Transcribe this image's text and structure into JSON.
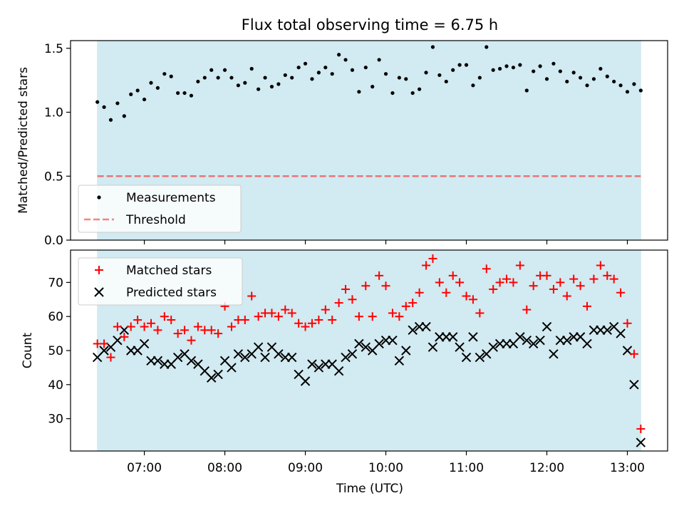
{
  "title": "Flux total observing time = 6.75 h",
  "colors": {
    "band": "#add8e6",
    "measurement": "#000000",
    "threshold": "#ff0000",
    "matched": "#ff0000",
    "predicted": "#000000"
  },
  "chart_data": [
    {
      "type": "scatter",
      "ylabel": "Matched/Predicted stars",
      "ylim": [
        0,
        1.56
      ],
      "yticks": [
        "0.0",
        "0.5",
        "1.0",
        "1.5"
      ],
      "legend_placement": "lower-left",
      "threshold": 0.5,
      "x": [
        "06:25",
        "06:30",
        "06:35",
        "06:40",
        "06:45",
        "06:50",
        "06:55",
        "07:00",
        "07:05",
        "07:10",
        "07:15",
        "07:20",
        "07:25",
        "07:30",
        "07:35",
        "07:40",
        "07:45",
        "07:50",
        "07:55",
        "08:00",
        "08:05",
        "08:10",
        "08:15",
        "08:20",
        "08:25",
        "08:30",
        "08:35",
        "08:40",
        "08:45",
        "08:50",
        "08:55",
        "09:00",
        "09:05",
        "09:10",
        "09:15",
        "09:20",
        "09:25",
        "09:30",
        "09:35",
        "09:40",
        "09:45",
        "09:50",
        "09:55",
        "10:00",
        "10:05",
        "10:10",
        "10:15",
        "10:20",
        "10:25",
        "10:30",
        "10:35",
        "10:40",
        "10:45",
        "10:50",
        "10:55",
        "11:00",
        "11:05",
        "11:10",
        "11:15",
        "11:20",
        "11:25",
        "11:30",
        "11:35",
        "11:40",
        "11:45",
        "11:50",
        "11:55",
        "12:00",
        "12:05",
        "12:10",
        "12:15",
        "12:20",
        "12:25",
        "12:30",
        "12:35",
        "12:40",
        "12:45",
        "12:50",
        "12:55",
        "13:00",
        "13:05",
        "13:10"
      ],
      "series": [
        {
          "name": "Measurements",
          "marker": "dot",
          "values": [
            1.08,
            1.04,
            0.94,
            1.07,
            0.97,
            1.14,
            1.17,
            1.1,
            1.23,
            1.19,
            1.3,
            1.28,
            1.15,
            1.15,
            1.13,
            1.24,
            1.27,
            1.33,
            1.27,
            1.33,
            1.27,
            1.21,
            1.23,
            1.34,
            1.18,
            1.27,
            1.2,
            1.22,
            1.29,
            1.27,
            1.35,
            1.38,
            1.26,
            1.31,
            1.35,
            1.3,
            1.45,
            1.41,
            1.33,
            1.16,
            1.35,
            1.2,
            1.41,
            1.3,
            1.15,
            1.27,
            1.26,
            1.15,
            1.18,
            1.31,
            1.51,
            1.29,
            1.24,
            1.33,
            1.37,
            1.37,
            1.21,
            1.27,
            1.51,
            1.33,
            1.34,
            1.36,
            1.35,
            1.37,
            1.17,
            1.32,
            1.36,
            1.26,
            1.38,
            1.32,
            1.24,
            1.31,
            1.27,
            1.21,
            1.26,
            1.34,
            1.28,
            1.24,
            1.21,
            1.16,
            1.22,
            1.17
          ]
        },
        {
          "name": "Threshold",
          "marker": "dashed-line",
          "values": [
            0.5
          ]
        }
      ]
    },
    {
      "type": "scatter",
      "xlabel": "Time (UTC)",
      "ylabel": "Count",
      "ylim": [
        20.5,
        79.5
      ],
      "yticks": [
        "30",
        "40",
        "50",
        "60",
        "70"
      ],
      "xticks": [
        "07:00",
        "08:00",
        "09:00",
        "10:00",
        "11:00",
        "12:00",
        "13:00"
      ],
      "legend_placement": "top-left",
      "x": [
        "06:25",
        "06:30",
        "06:35",
        "06:40",
        "06:45",
        "06:50",
        "06:55",
        "07:00",
        "07:05",
        "07:10",
        "07:15",
        "07:20",
        "07:25",
        "07:30",
        "07:35",
        "07:40",
        "07:45",
        "07:50",
        "07:55",
        "08:00",
        "08:05",
        "08:10",
        "08:15",
        "08:20",
        "08:25",
        "08:30",
        "08:35",
        "08:40",
        "08:45",
        "08:50",
        "08:55",
        "09:00",
        "09:05",
        "09:10",
        "09:15",
        "09:20",
        "09:25",
        "09:30",
        "09:35",
        "09:40",
        "09:45",
        "09:50",
        "09:55",
        "10:00",
        "10:05",
        "10:10",
        "10:15",
        "10:20",
        "10:25",
        "10:30",
        "10:35",
        "10:40",
        "10:45",
        "10:50",
        "10:55",
        "11:00",
        "11:05",
        "11:10",
        "11:15",
        "11:20",
        "11:25",
        "11:30",
        "11:35",
        "11:40",
        "11:45",
        "11:50",
        "11:55",
        "12:00",
        "12:05",
        "12:10",
        "12:15",
        "12:20",
        "12:25",
        "12:30",
        "12:35",
        "12:40",
        "12:45",
        "12:50",
        "12:55",
        "13:00",
        "13:05",
        "13:10"
      ],
      "series": [
        {
          "name": "Matched stars",
          "marker": "plus",
          "values": [
            52,
            52,
            48,
            57,
            54,
            57,
            59,
            57,
            58,
            56,
            60,
            59,
            55,
            56,
            53,
            57,
            56,
            56,
            55,
            63,
            57,
            59,
            59,
            66,
            60,
            61,
            61,
            60,
            62,
            61,
            58,
            57,
            58,
            59,
            62,
            59,
            64,
            68,
            65,
            60,
            69,
            60,
            72,
            69,
            61,
            60,
            63,
            64,
            67,
            75,
            77,
            70,
            67,
            72,
            70,
            66,
            65,
            61,
            74,
            68,
            70,
            71,
            70,
            75,
            62,
            69,
            72,
            72,
            68,
            70,
            66,
            71,
            69,
            63,
            71,
            75,
            72,
            71,
            67,
            58,
            49,
            27
          ]
        },
        {
          "name": "Predicted stars",
          "marker": "x",
          "values": [
            48,
            50,
            51,
            53,
            56,
            50,
            50,
            52,
            47,
            47,
            46,
            46,
            48,
            49,
            47,
            46,
            44,
            42,
            43,
            47,
            45,
            49,
            48,
            49,
            51,
            48,
            51,
            49,
            48,
            48,
            43,
            41,
            46,
            45,
            46,
            46,
            44,
            48,
            49,
            52,
            51,
            50,
            52,
            53,
            53,
            47,
            50,
            56,
            57,
            57,
            51,
            54,
            54,
            54,
            51,
            48,
            54,
            48,
            49,
            51,
            52,
            52,
            52,
            54,
            53,
            52,
            53,
            57,
            49,
            53,
            53,
            54,
            54,
            52,
            56,
            56,
            56,
            57,
            55,
            50,
            40,
            23
          ]
        }
      ]
    }
  ]
}
